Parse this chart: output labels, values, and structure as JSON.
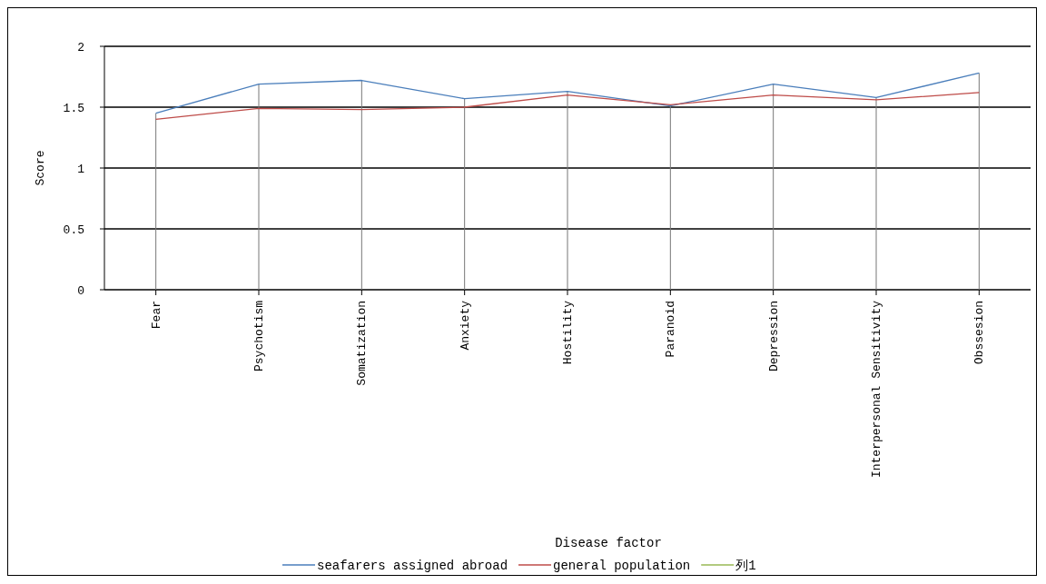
{
  "chart_data": {
    "type": "line",
    "xlabel": "Disease factor",
    "ylabel": "Score",
    "categories": [
      "Fear",
      "Psychotism",
      "Somatization",
      "Anxiety",
      "Hostility",
      "Paranoid",
      "Depression",
      "Interpersonal Sensitivity",
      "Obssesion"
    ],
    "series": [
      {
        "name": "seafarers assigned abroad",
        "color": "#4a7ebb",
        "values": [
          1.45,
          1.69,
          1.72,
          1.57,
          1.63,
          1.51,
          1.69,
          1.58,
          1.78
        ]
      },
      {
        "name": "general population",
        "color": "#be4b48",
        "values": [
          1.4,
          1.49,
          1.48,
          1.5,
          1.6,
          1.52,
          1.6,
          1.56,
          1.62
        ]
      },
      {
        "name": "列1",
        "color": "#98b954",
        "values": [
          null,
          null,
          null,
          null,
          null,
          null,
          null,
          null,
          null
        ]
      }
    ],
    "ylim": [
      0,
      2
    ],
    "yticks": [
      0,
      0.5,
      1,
      1.5,
      2
    ],
    "grid": true,
    "legend": "bottom",
    "marker": "none",
    "line_style": "solid"
  }
}
